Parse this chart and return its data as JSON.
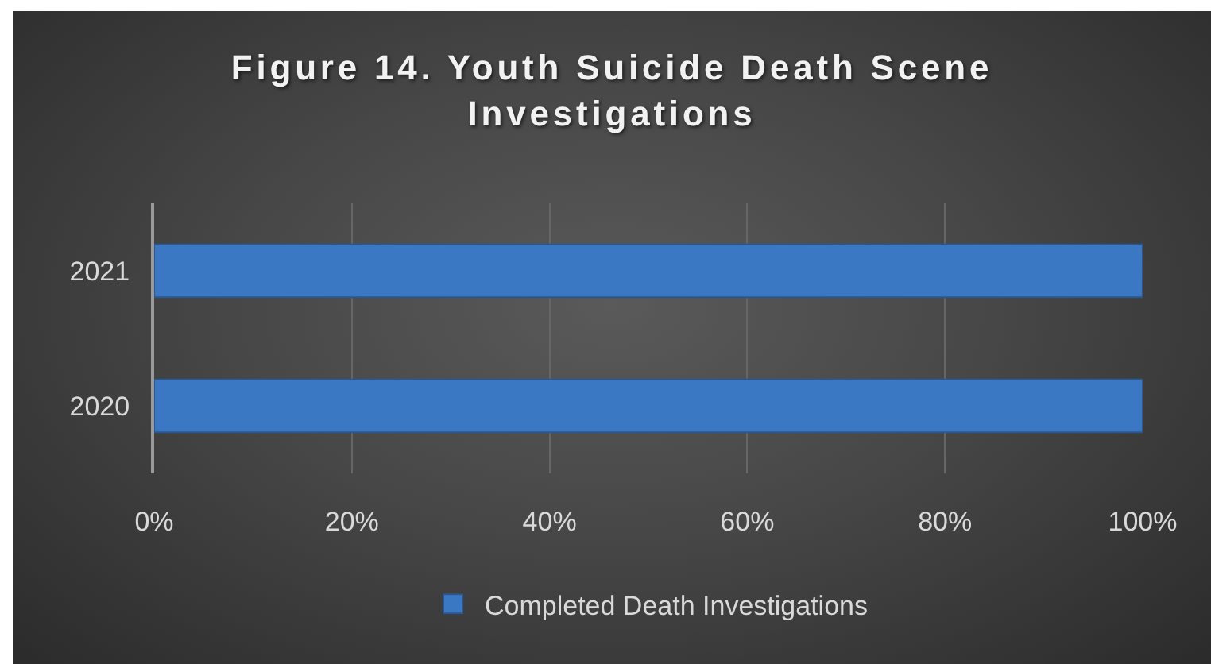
{
  "chart_data": {
    "type": "bar",
    "orientation": "horizontal",
    "title": "Figure 14. Youth Suicide Death Scene Investigations",
    "categories": [
      "2021",
      "2020"
    ],
    "series": [
      {
        "name": "Completed Death Investigations",
        "color": "#3b78c4",
        "values": [
          100,
          100
        ]
      }
    ],
    "xlim": [
      0,
      100
    ],
    "xticks": [
      {
        "value": 0,
        "label": "0%"
      },
      {
        "value": 20,
        "label": "20%"
      },
      {
        "value": 40,
        "label": "40%"
      },
      {
        "value": 60,
        "label": "60%"
      },
      {
        "value": 80,
        "label": "80%"
      },
      {
        "value": 100,
        "label": "100%"
      }
    ],
    "grid": "x",
    "legend": "bottom"
  }
}
